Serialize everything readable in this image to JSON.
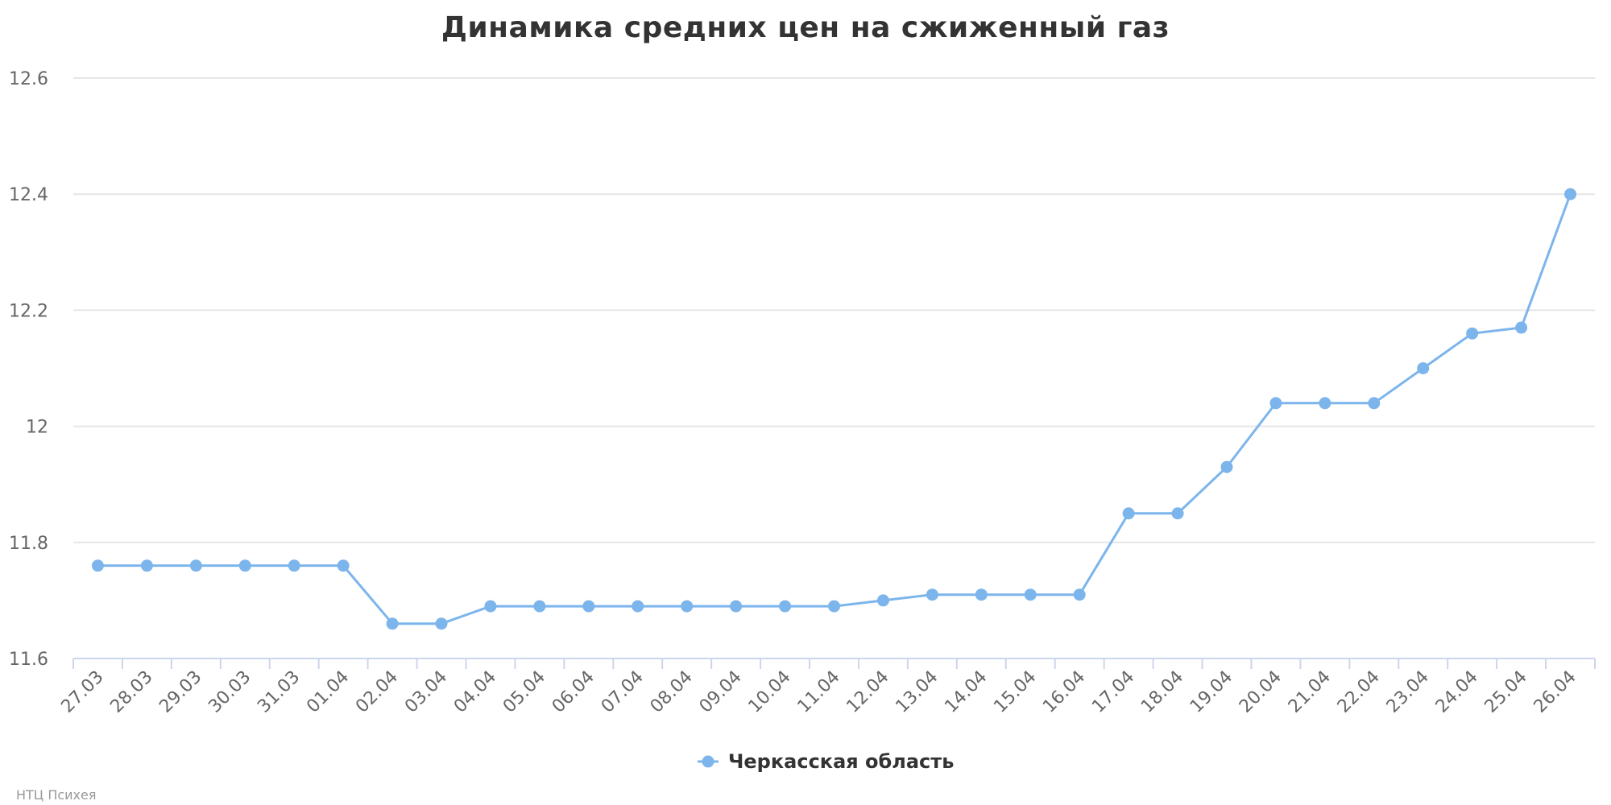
{
  "chart_data": {
    "type": "line",
    "title": "Динамика средних цен на сжиженный газ",
    "categories": [
      "27.03",
      "28.03",
      "29.03",
      "30.03",
      "31.03",
      "01.04",
      "02.04",
      "03.04",
      "04.04",
      "05.04",
      "06.04",
      "07.04",
      "08.04",
      "09.04",
      "10.04",
      "11.04",
      "12.04",
      "13.04",
      "14.04",
      "15.04",
      "16.04",
      "17.04",
      "18.04",
      "19.04",
      "20.04",
      "21.04",
      "22.04",
      "23.04",
      "24.04",
      "25.04",
      "26.04"
    ],
    "series": [
      {
        "name": "Черкасская область",
        "color": "#7cb5ec",
        "values": [
          11.76,
          11.76,
          11.76,
          11.76,
          11.76,
          11.76,
          11.66,
          11.66,
          11.69,
          11.69,
          11.69,
          11.69,
          11.69,
          11.69,
          11.69,
          11.69,
          11.7,
          11.71,
          11.71,
          11.71,
          11.71,
          11.85,
          11.85,
          11.93,
          12.04,
          12.04,
          12.04,
          12.1,
          12.16,
          12.17,
          12.4
        ]
      }
    ],
    "y_ticks": [
      "11.6",
      "11.8",
      "12",
      "12.2",
      "12.4",
      "12.6"
    ],
    "ylim": [
      11.6,
      12.6
    ],
    "xlabel": "",
    "ylabel": "",
    "grid": true,
    "legend_position": "bottom-center",
    "credits": "НТЦ Психея"
  }
}
